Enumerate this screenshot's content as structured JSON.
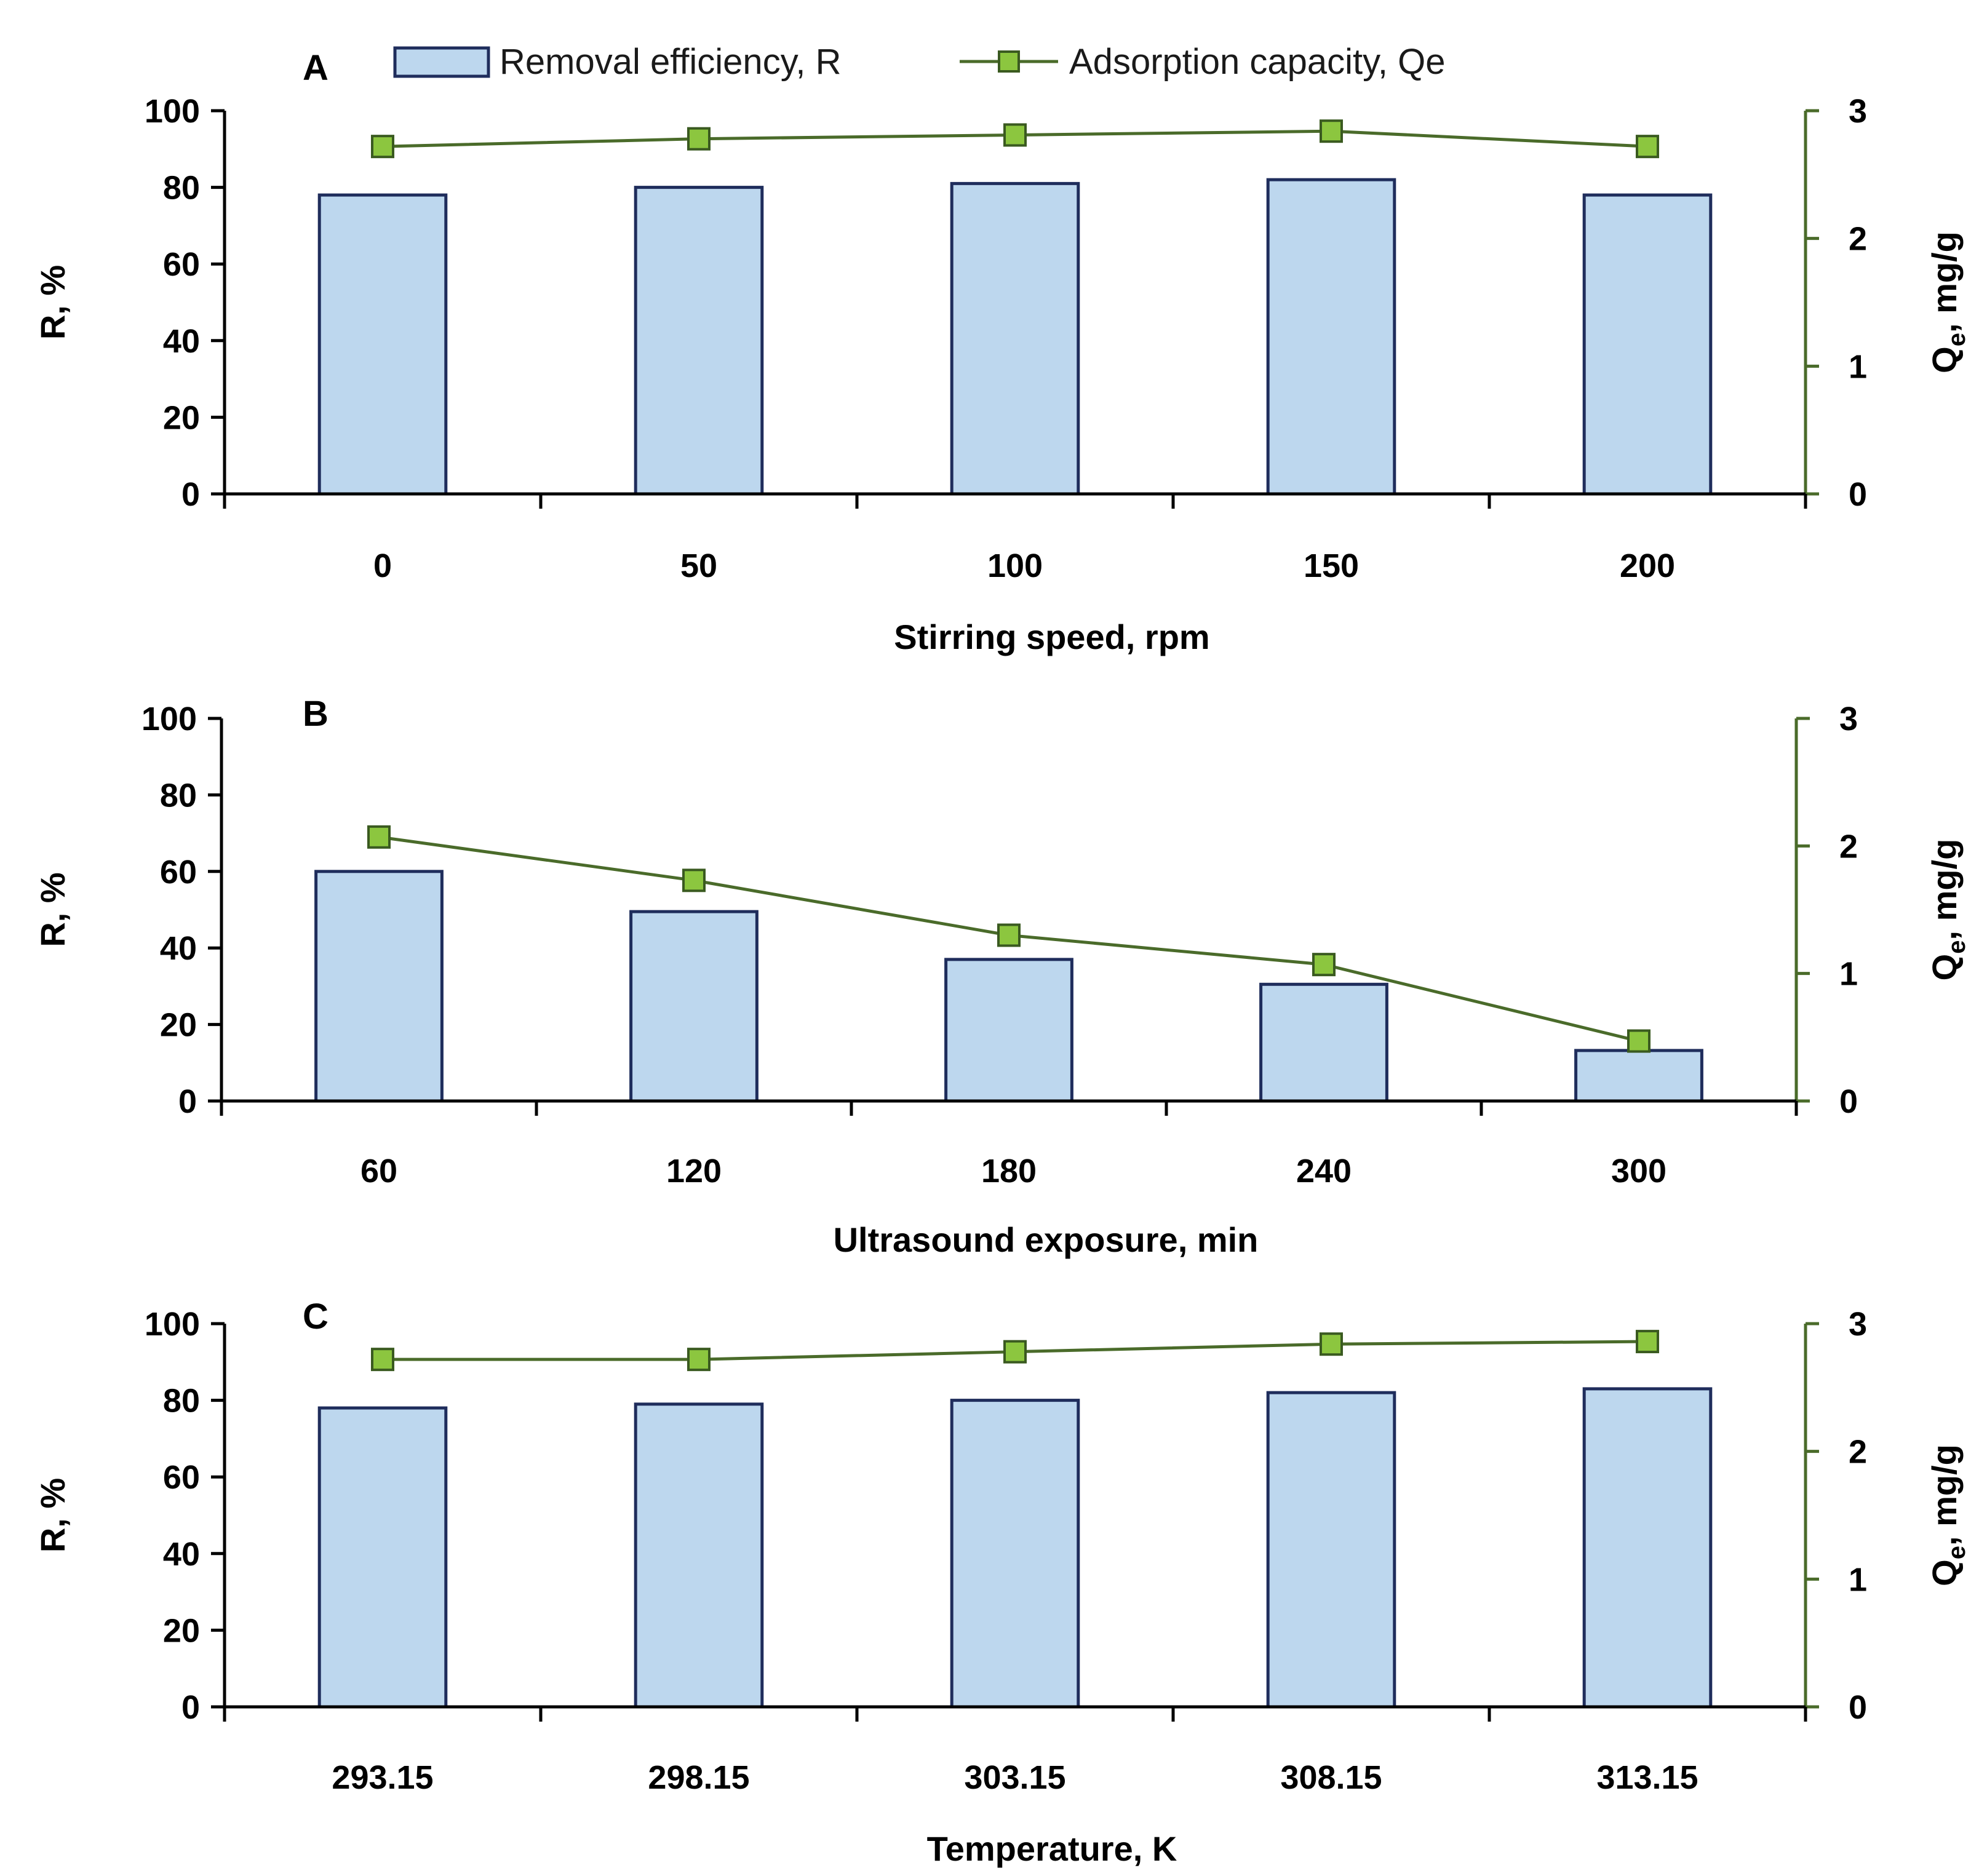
{
  "legend": {
    "bar_label": "Removal efficiency, R",
    "line_label": "Adsorption capacity, Qe"
  },
  "colors": {
    "bar_fill": "#bdd7ee",
    "bar_stroke": "#1f2d5c",
    "line": "#4a6b2a",
    "marker_fill": "#8cc63f",
    "axis_left": "#000000",
    "axis_right": "#4a6b2a"
  },
  "chart_data": [
    {
      "type": "bar+line",
      "panel_label": "A",
      "xlabel": "Stirring speed, rpm",
      "ylabel": "R, %",
      "y2label_main": "Q",
      "y2label_sub": "e",
      "y2label_rest": ", mg/g",
      "categories": [
        "0",
        "50",
        "100",
        "150",
        "200"
      ],
      "series": [
        {
          "name": "Removal efficiency, R",
          "axis": "left",
          "kind": "bar",
          "values": [
            78,
            80,
            81,
            82,
            78
          ]
        },
        {
          "name": "Adsorption capacity, Qe",
          "axis": "right",
          "kind": "line",
          "values": [
            2.72,
            2.78,
            2.81,
            2.84,
            2.72
          ]
        }
      ],
      "ylim": [
        0,
        100
      ],
      "yticks": [
        "0",
        "20",
        "40",
        "60",
        "80",
        "100"
      ],
      "y2lim": [
        0,
        3
      ],
      "y2ticks": [
        "0",
        "1",
        "2",
        "3"
      ]
    },
    {
      "type": "bar+line",
      "panel_label": "B",
      "xlabel": "Ultrasound  exposure, min",
      "ylabel": "R, %",
      "y2label_main": "Q",
      "y2label_sub": "e",
      "y2label_rest": ", mg/g",
      "categories": [
        "60",
        "120",
        "180",
        "240",
        "300"
      ],
      "series": [
        {
          "name": "Removal efficiency, R",
          "axis": "left",
          "kind": "bar",
          "values": [
            60,
            49.5,
            37,
            30.5,
            13.2
          ]
        },
        {
          "name": "Adsorption capacity, Qe",
          "axis": "right",
          "kind": "line",
          "values": [
            2.07,
            1.73,
            1.3,
            1.07,
            0.47
          ]
        }
      ],
      "ylim": [
        0,
        100
      ],
      "yticks": [
        "0",
        "20",
        "40",
        "60",
        "80",
        "100"
      ],
      "y2lim": [
        0,
        3
      ],
      "y2ticks": [
        "0",
        "1",
        "2",
        "3"
      ]
    },
    {
      "type": "bar+line",
      "panel_label": "C",
      "xlabel": "Temperature, K",
      "ylabel": "R, %",
      "y2label_main": "Q",
      "y2label_sub": "e",
      "y2label_rest": ", mg/g",
      "categories": [
        "293.15",
        "298.15",
        "303.15",
        "308.15",
        "313.15"
      ],
      "series": [
        {
          "name": "Removal efficiency, R",
          "axis": "left",
          "kind": "bar",
          "values": [
            78,
            79,
            80,
            82,
            83
          ]
        },
        {
          "name": "Adsorption capacity, Qe",
          "axis": "right",
          "kind": "line",
          "values": [
            2.72,
            2.72,
            2.78,
            2.84,
            2.86
          ]
        }
      ],
      "ylim": [
        0,
        100
      ],
      "yticks": [
        "0",
        "20",
        "40",
        "60",
        "80",
        "100"
      ],
      "y2lim": [
        0,
        3
      ],
      "y2ticks": [
        "0",
        "1",
        "2",
        "3"
      ]
    }
  ]
}
